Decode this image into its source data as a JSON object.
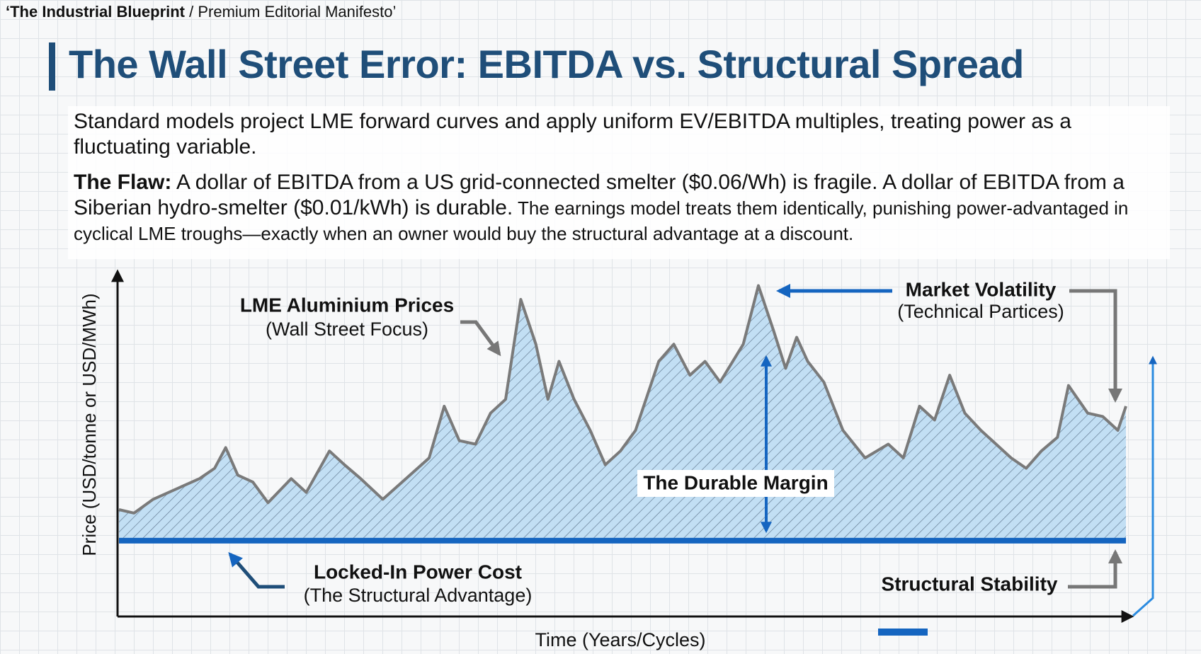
{
  "header": {
    "brand": "‘The Industrial Blueprint",
    "subtitle": " / Premium Editorial Manifesto’"
  },
  "title": "The Wall Street Error: EBITDA vs. Structural Spread",
  "body": {
    "p1": "Standard models project LME forward curves and apply uniform EV/EBITDA multiples, treating power as a fluctuating variable.",
    "p2_lead": "The Flaw:",
    "p2_main": " A dollar of EBITDA from a US grid-connected smelter ($0.06/Wh) is fragile. A dollar of EBITDA from a Siberian hydro-smelter ($0.01/kWh) is durable.",
    "p2_tail": " The earnings model treats them identically, punishing power-advantaged in cyclical LME troughs—exactly when an owner would buy the structural advantage at a discount."
  },
  "chart_data": {
    "type": "line",
    "y_label": "Price (USD/tonne or USD/MWh)",
    "x_label": "Time (Years/Cycles)",
    "xlim": [
      0,
      100
    ],
    "ylim": [
      0,
      100
    ],
    "annotations": {
      "prices": "LME Aluminium Prices",
      "prices_sub": "(Wall Street Focus)",
      "volatility": "Market Volatility",
      "volatility_sub": "(Technical Partices)",
      "margin": "The Durable Margin",
      "power": "Locked-In Power Cost",
      "power_sub": "(The Structural Advantage)",
      "stability": "Structural Stability"
    },
    "series": [
      {
        "color": "#7a7a7a",
        "x": [
          0,
          1.5,
          3.4,
          5.7,
          8,
          9.5,
          10.6,
          11.8,
          13.3,
          14.8,
          17.1,
          18.6,
          20.9,
          22.4,
          24,
          26.2,
          28.5,
          30.8,
          32.3,
          33.8,
          35.4,
          36.9,
          38.4,
          39.9,
          41.4,
          42.6,
          43.7,
          45.2,
          46.8,
          48.3,
          49.8,
          51.3,
          53.6,
          55.1,
          56.7,
          58.2,
          59.7,
          62,
          63.5,
          65,
          66.2,
          67.3,
          68.4,
          70,
          71.9,
          74.1,
          76.4,
          77.9,
          79.5,
          81,
          82.5,
          84,
          85.6,
          87.1,
          88.6,
          90.1,
          91.6,
          93.2,
          94.3,
          96.2,
          97.7,
          99.2,
          100
        ],
        "values": [
          31,
          30,
          34,
          37,
          40,
          43,
          49,
          41,
          39,
          33,
          40,
          36,
          48,
          44,
          40,
          34,
          40,
          46,
          61,
          51,
          50,
          59,
          63,
          92,
          79,
          63,
          74,
          63,
          54,
          44,
          48,
          54,
          74,
          79,
          70,
          74,
          68,
          79,
          96,
          83,
          72,
          81,
          74,
          68,
          54,
          46,
          50,
          46,
          61,
          57,
          70,
          59,
          54,
          50,
          46,
          43,
          48,
          52,
          67,
          59,
          58,
          54,
          61
        ]
      },
      {
        "color": "#1565c0",
        "x": [
          0,
          100
        ],
        "values": [
          22,
          22
        ]
      }
    ]
  }
}
